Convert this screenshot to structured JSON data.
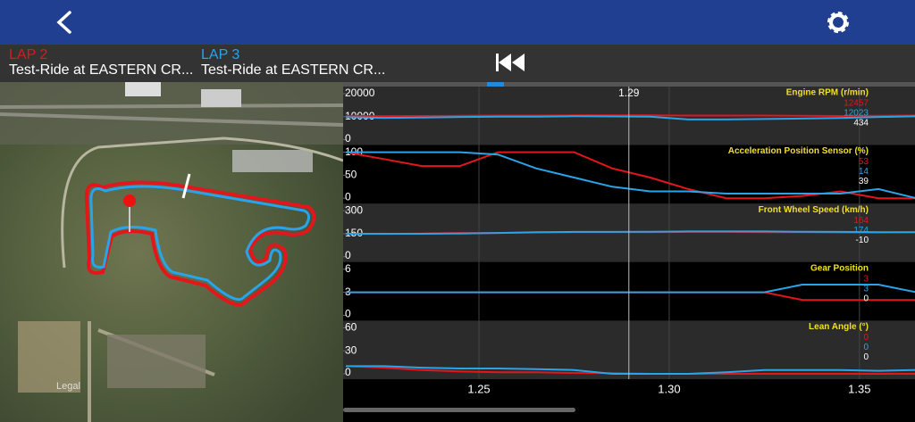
{
  "header": {
    "laps": [
      {
        "label": "LAP 2",
        "session": "Test-Ride at EASTERN CR...",
        "color": "#e3161c"
      },
      {
        "label": "LAP 3",
        "session": "Test-Ride at EASTERN CR...",
        "color": "#2aa4e8"
      }
    ]
  },
  "map": {
    "legal": "Legal"
  },
  "cursor": {
    "value": 1.2894,
    "label": "1.29"
  },
  "x_axis": {
    "xlim": [
      1.2143,
      1.3646
    ],
    "xticks": [
      1.25,
      {
        "value": 1.3,
        "label": "1.30"
      },
      1.35
    ],
    "x": [
      1.215,
      1.225,
      1.235,
      1.245,
      1.255,
      1.265,
      1.275,
      1.285,
      1.295,
      1.305,
      1.315,
      1.325,
      1.335,
      1.345,
      1.355,
      1.365
    ]
  },
  "difference_color": "#ffffff",
  "chart_data": [
    {
      "type": "line",
      "title": "Engine RPM (r/min)",
      "ylim": [
        0,
        20000
      ],
      "yticks": [
        20000,
        10000,
        0
      ],
      "series": [
        {
          "color": "#e3161c",
          "readout": 12457,
          "values": [
            10400,
            10200,
            10300,
            10400,
            10500,
            10500,
            10600,
            10600,
            10600,
            10500,
            10500,
            10500,
            10400,
            10300,
            10400,
            10500
          ]
        },
        {
          "color": "#2aa4e8",
          "readout": 12023,
          "values": [
            9800,
            9500,
            9600,
            9900,
            10000,
            10000,
            10200,
            10100,
            10000,
            8800,
            8800,
            9000,
            9200,
            9400,
            9900,
            10200
          ]
        }
      ],
      "difference": 434
    },
    {
      "type": "line",
      "title": "Acceleration Position Sensor (%)",
      "ylim": [
        0,
        100
      ],
      "yticks": [
        100,
        50,
        0
      ],
      "series": [
        {
          "color": "#e3161c",
          "readout": 53,
          "values": [
            100,
            85,
            70,
            70,
            100,
            100,
            100,
            65,
            45,
            20,
            0,
            0,
            5,
            15,
            0,
            0
          ]
        },
        {
          "color": "#2aa4e8",
          "readout": 14,
          "values": [
            100,
            100,
            100,
            100,
            95,
            65,
            45,
            25,
            15,
            15,
            10,
            10,
            10,
            10,
            20,
            0
          ]
        }
      ],
      "difference": 39
    },
    {
      "type": "line",
      "title": "Front Wheel Speed (km/h)",
      "ylim": [
        0,
        300
      ],
      "yticks": [
        300,
        150,
        0
      ],
      "series": [
        {
          "color": "#e3161c",
          "readout": 164,
          "values": [
            150,
            148,
            152,
            155,
            155,
            158,
            160,
            160,
            160,
            162,
            162,
            160,
            160,
            158,
            158,
            160
          ]
        },
        {
          "color": "#2aa4e8",
          "readout": 174,
          "values": [
            150,
            150,
            150,
            152,
            155,
            160,
            162,
            162,
            163,
            165,
            165,
            165,
            163,
            162,
            160,
            160
          ]
        }
      ],
      "difference": -10
    },
    {
      "type": "line",
      "title": "Gear Position",
      "ylim": [
        0,
        6
      ],
      "yticks": [
        6,
        3,
        0
      ],
      "series": [
        {
          "color": "#e3161c",
          "readout": 3,
          "values": [
            3,
            3,
            3,
            3,
            3,
            3,
            3,
            3,
            3,
            3,
            3,
            3,
            2,
            2,
            2,
            2
          ]
        },
        {
          "color": "#2aa4e8",
          "readout": 3,
          "values": [
            3,
            3,
            3,
            3,
            3,
            3,
            3,
            3,
            3,
            3,
            3,
            3,
            4,
            4,
            4,
            3
          ]
        }
      ],
      "difference": 0
    },
    {
      "type": "line",
      "title": "Lean Angle (°)",
      "ylim": [
        0,
        60
      ],
      "yticks": [
        60,
        30,
        0
      ],
      "series": [
        {
          "color": "#e3161c",
          "readout": 0,
          "values": [
            10,
            8,
            5,
            3,
            2,
            2,
            1,
            1,
            0,
            0,
            0,
            0,
            0,
            0,
            0,
            0
          ]
        },
        {
          "color": "#2aa4e8",
          "readout": 0,
          "values": [
            10,
            10,
            8,
            7,
            7,
            6,
            5,
            0,
            0,
            0,
            2,
            5,
            5,
            5,
            4,
            5
          ]
        }
      ],
      "difference": 0
    }
  ]
}
